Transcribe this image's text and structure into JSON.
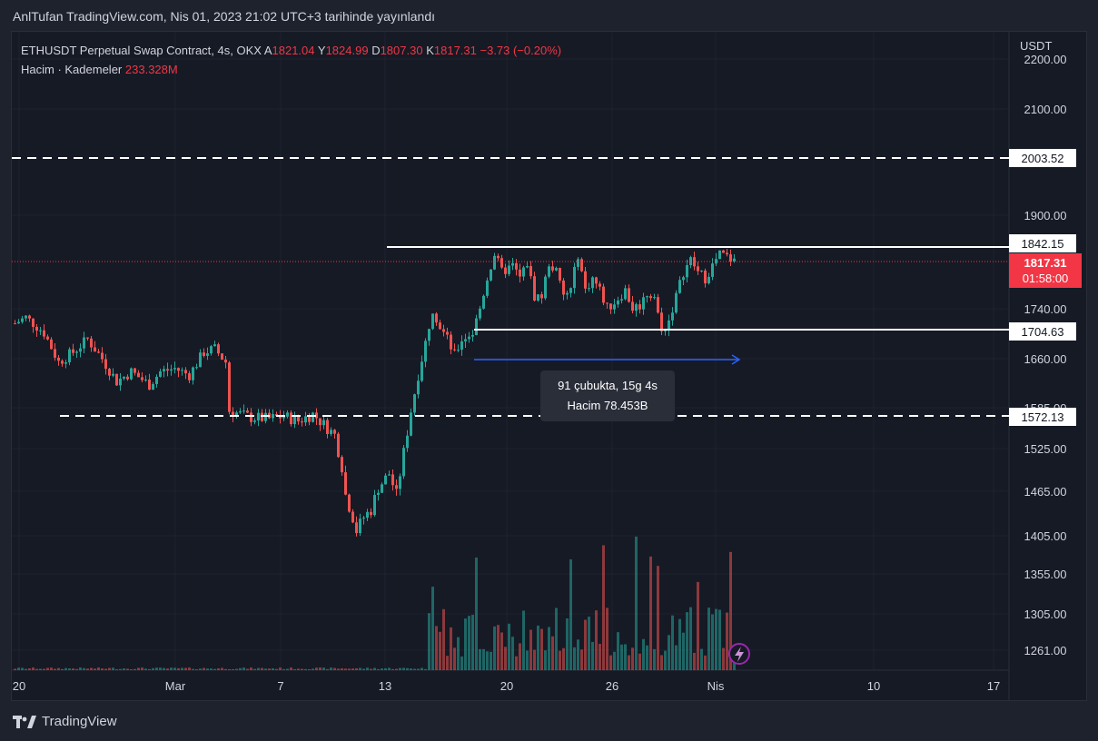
{
  "header": {
    "publisher": "AnlTufan TradingView.com, Nis 01, 2023 21:02 UTC+3 tarihinde yayınlandı"
  },
  "legend": {
    "symbol": "ETHUSDT Perpetual Swap Contract, 4s, OKX",
    "open_label": "A",
    "open": "1821.04",
    "high_label": "Y",
    "high": "1824.99",
    "low_label": "D",
    "low": "1807.30",
    "close_label": "K",
    "close": "1817.31",
    "change": "−3.73 (−0.20%)",
    "volume_label": "Hacim · Kademeler",
    "volume_value": "233.328M"
  },
  "price_axis": {
    "currency": "USDT",
    "ticks": [
      "2200.00",
      "2100.00",
      "1900.00",
      "1740.00",
      "1660.00",
      "1585.00",
      "1525.00",
      "1465.00",
      "1405.00",
      "1355.00",
      "1305.00",
      "1261.00"
    ]
  },
  "price_labels": {
    "resistance_high": "2003.52",
    "range_top": "1842.15",
    "last_price": "1817.31",
    "countdown": "01:58:00",
    "range_bottom": "1704.63",
    "support": "1572.13"
  },
  "measure": {
    "bars_text": "91 çubukta, 15g 4s",
    "volume_text": "Hacim 78.453B"
  },
  "time_axis": {
    "labels": [
      "20",
      "Mar",
      "7",
      "13",
      "20",
      "26",
      "Nis",
      "10",
      "17"
    ]
  },
  "footer": {
    "brand": "TradingView"
  },
  "colors": {
    "up": "#26a69a",
    "down": "#ef5350",
    "background": "#161a25",
    "last_price_bg": "#f23645",
    "measure_arrow": "#2962ff"
  },
  "chart_data": {
    "type": "candlestick",
    "title": "ETHUSDT Perpetual Swap Contract, 4s, OKX",
    "ylabel": "USDT",
    "ylim": [
      1240,
      2240
    ],
    "x": [
      "20",
      "Mar",
      "7",
      "13",
      "20",
      "26",
      "Nis",
      "10",
      "17"
    ],
    "price_path": [
      [
        0,
        1715
      ],
      [
        3,
        1725
      ],
      [
        8,
        1700
      ],
      [
        12,
        1655
      ],
      [
        16,
        1670
      ],
      [
        20,
        1690
      ],
      [
        24,
        1660
      ],
      [
        28,
        1625
      ],
      [
        32,
        1640
      ],
      [
        37,
        1620
      ],
      [
        40,
        1640
      ],
      [
        44,
        1645
      ],
      [
        48,
        1635
      ],
      [
        52,
        1670
      ],
      [
        55,
        1675
      ],
      [
        58,
        1655
      ],
      [
        59,
        1580
      ],
      [
        62,
        1575
      ],
      [
        65,
        1570
      ],
      [
        70,
        1568
      ],
      [
        74,
        1572
      ],
      [
        78,
        1565
      ],
      [
        82,
        1575
      ],
      [
        85,
        1560
      ],
      [
        88,
        1545
      ],
      [
        90,
        1500
      ],
      [
        91,
        1460
      ],
      [
        93,
        1430
      ],
      [
        94,
        1412
      ],
      [
        96,
        1430
      ],
      [
        98,
        1440
      ],
      [
        100,
        1470
      ],
      [
        103,
        1490
      ],
      [
        105,
        1460
      ],
      [
        107,
        1520
      ],
      [
        109,
        1580
      ],
      [
        111,
        1635
      ],
      [
        113,
        1685
      ],
      [
        115,
        1740
      ],
      [
        117,
        1710
      ],
      [
        119,
        1690
      ],
      [
        121,
        1665
      ],
      [
        123,
        1690
      ],
      [
        126,
        1700
      ],
      [
        128,
        1740
      ],
      [
        130,
        1790
      ],
      [
        132,
        1830
      ],
      [
        134,
        1800
      ],
      [
        137,
        1810
      ],
      [
        139,
        1790
      ],
      [
        141,
        1815
      ],
      [
        143,
        1760
      ],
      [
        145,
        1760
      ],
      [
        147,
        1815
      ],
      [
        149,
        1800
      ],
      [
        151,
        1760
      ],
      [
        153,
        1770
      ],
      [
        155,
        1830
      ],
      [
        157,
        1770
      ],
      [
        159,
        1790
      ],
      [
        161,
        1770
      ],
      [
        163,
        1740
      ],
      [
        165,
        1750
      ],
      [
        168,
        1770
      ],
      [
        170,
        1740
      ],
      [
        172,
        1745
      ],
      [
        174,
        1765
      ],
      [
        176,
        1760
      ],
      [
        178,
        1700
      ],
      [
        180,
        1720
      ],
      [
        182,
        1760
      ],
      [
        184,
        1800
      ],
      [
        186,
        1820
      ],
      [
        188,
        1800
      ],
      [
        190,
        1790
      ],
      [
        192,
        1810
      ],
      [
        194,
        1830
      ],
      [
        196,
        1825
      ],
      [
        198,
        1818
      ]
    ],
    "horizontal_levels": [
      2003.52,
      1842.15,
      1704.63,
      1572.13
    ],
    "last_price": 1817.31,
    "measure": {
      "bars": 91,
      "volume": "78.453B"
    },
    "volume": {
      "label": "Hacim · Kademeler",
      "value": "233.328M"
    }
  }
}
